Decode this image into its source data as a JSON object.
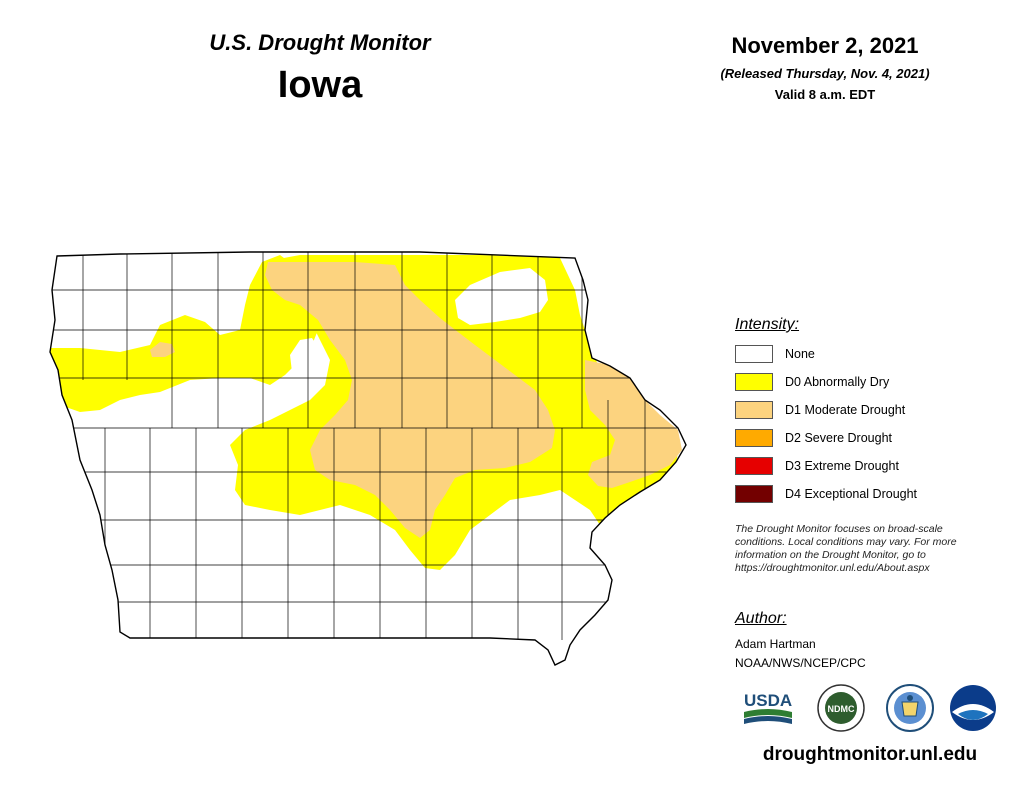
{
  "header": {
    "title": "U.S. Drought Monitor",
    "state": "Iowa",
    "date": "November 2, 2021",
    "released": "(Released Thursday, Nov. 4, 2021)",
    "valid": "Valid 8 a.m. EDT"
  },
  "legend": {
    "title": "Intensity:",
    "items": [
      {
        "label": "None",
        "color": "#ffffff"
      },
      {
        "label": "D0 Abnormally Dry",
        "color": "#ffff00"
      },
      {
        "label": "D1 Moderate Drought",
        "color": "#fcd37f"
      },
      {
        "label": "D2 Severe Drought",
        "color": "#ffaa00"
      },
      {
        "label": "D3 Extreme Drought",
        "color": "#e60000"
      },
      {
        "label": "D4 Exceptional Drought",
        "color": "#730000"
      }
    ]
  },
  "note": {
    "lines": [
      "The Drought Monitor focuses on broad-scale",
      "conditions. Local conditions may vary. For more",
      "information on the Drought Monitor, go to",
      "https://droughtmonitor.unl.edu/About.aspx"
    ]
  },
  "author": {
    "title": "Author:",
    "name": "Adam Hartman",
    "org": "NOAA/NWS/NCEP/CPC"
  },
  "logos": {
    "usda": "USDA",
    "ndmc": "NDMC",
    "items": [
      "usda-logo",
      "ndmc-logo",
      "commerce-seal",
      "noaa-logo"
    ]
  },
  "footer": {
    "url": "droughtmonitor.unl.edu"
  },
  "colors": {
    "none": "#ffffff",
    "d0": "#ffff00",
    "d1": "#fcd37f",
    "border": "#000000"
  }
}
